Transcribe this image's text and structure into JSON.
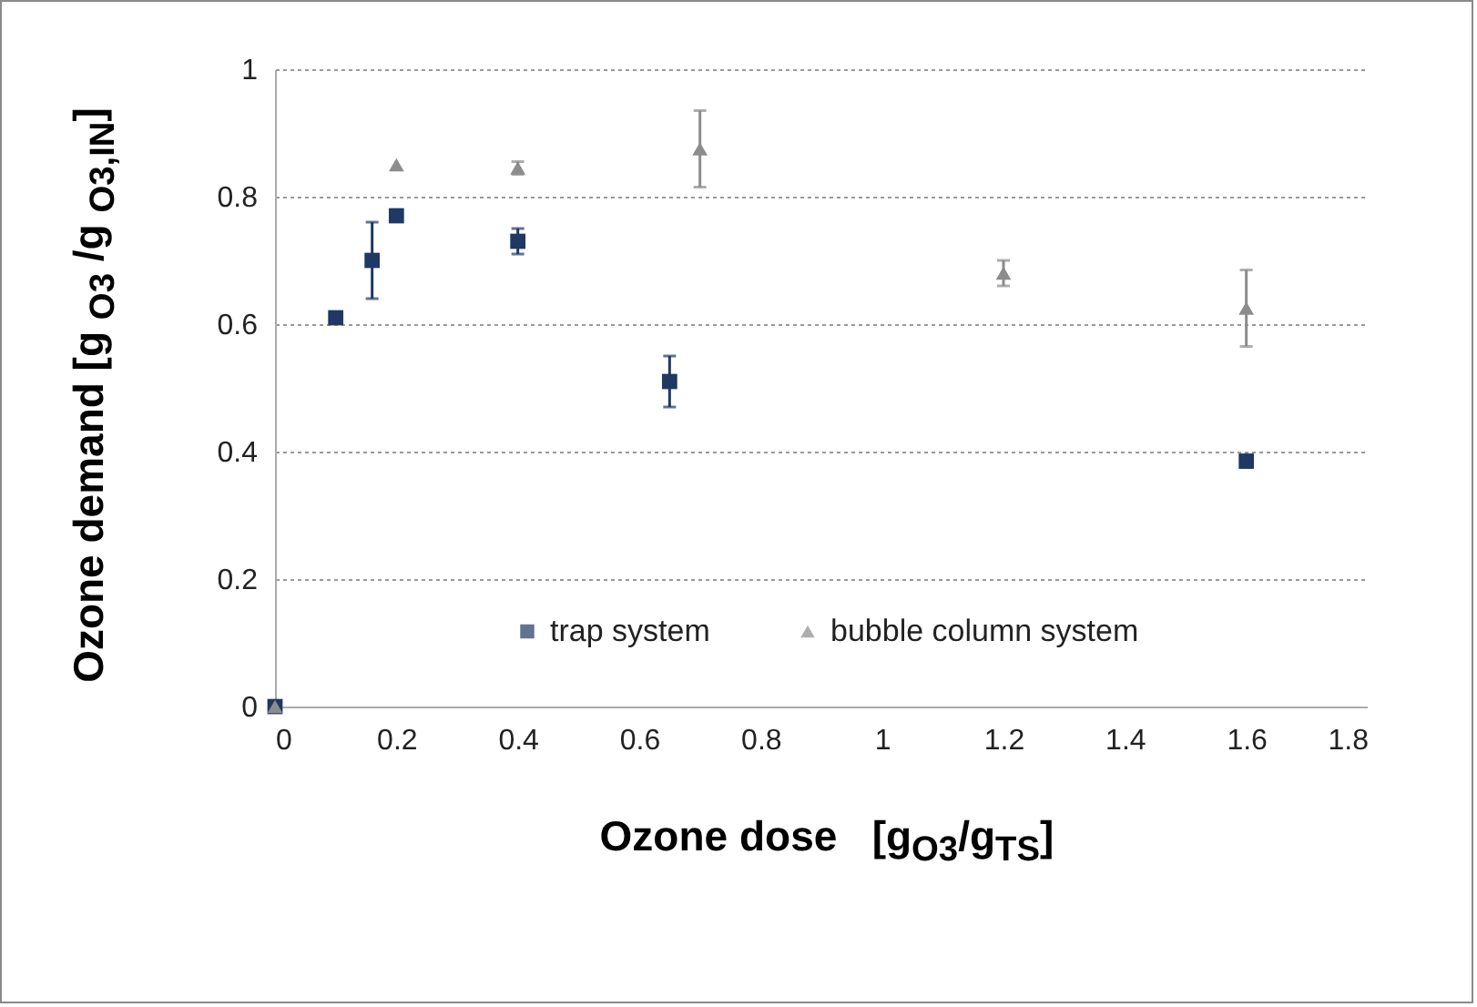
{
  "chart_data": {
    "type": "scatter",
    "xlabel": "Ozone dose   [g$_{O3}$/g$_{TS}$]",
    "ylabel": "Ozone demand [g $_{O3}$ /g $_{O3,IN}$]",
    "xlim": [
      0,
      1.8
    ],
    "xticks": [
      0,
      0.2,
      0.4,
      0.6,
      0.8,
      1,
      1.2,
      1.4,
      1.6,
      1.8
    ],
    "ylim": [
      0,
      1
    ],
    "yticks": [
      0,
      0.2,
      0.4,
      0.6,
      0.8,
      1
    ],
    "grid": "y",
    "legend": "bottom",
    "series": [
      {
        "name": "trap system",
        "color": "#1f3864",
        "marker": "square",
        "x": [
          0,
          0.1,
          0.16,
          0.2,
          0.4,
          0.65,
          1.6
        ],
        "values": [
          0,
          0.61,
          0.7,
          0.77,
          0.73,
          0.51,
          0.385
        ],
        "errors": [
          null,
          null,
          0.06,
          null,
          0.02,
          0.04,
          0.01
        ]
      },
      {
        "name": "bubble column system",
        "color": "#8c8c8c",
        "marker": "triangle",
        "x": [
          0,
          0.2,
          0.4,
          0.7,
          1.2,
          1.6
        ],
        "values": [
          0,
          0.85,
          0.845,
          0.875,
          0.68,
          0.625
        ],
        "errors": [
          null,
          null,
          0.01,
          0.06,
          0.02,
          0.06
        ]
      }
    ]
  }
}
